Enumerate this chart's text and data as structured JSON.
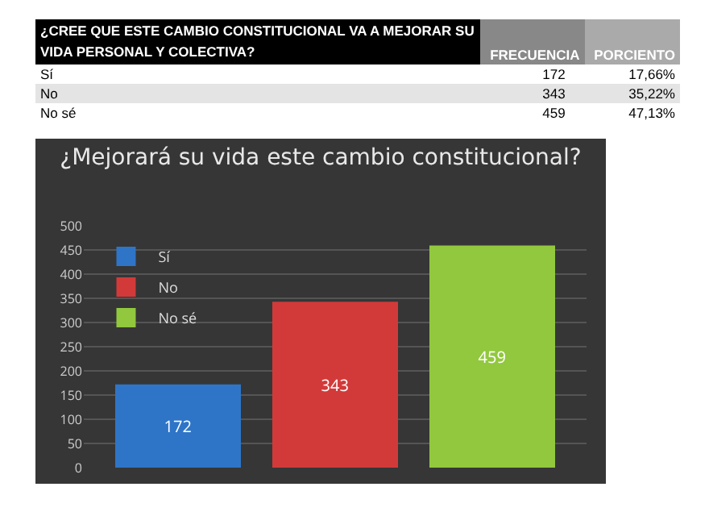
{
  "chart_data": {
    "type": "bar",
    "title": "¿Mejorará su vida este cambio constitucional?",
    "categories": [
      null,
      null,
      null
    ],
    "series": [
      {
        "name": "Sí",
        "color": "#2e75c8",
        "values": [
          172,
          null,
          null
        ]
      },
      {
        "name": "No",
        "color": "#d23a3a",
        "values": [
          null,
          343,
          null
        ]
      },
      {
        "name": "No sé",
        "color": "#92c83e",
        "values": [
          null,
          null,
          459
        ]
      }
    ],
    "ylim": [
      0,
      500
    ],
    "yticks": [
      0,
      50,
      100,
      150,
      200,
      250,
      300,
      350,
      400,
      450,
      500
    ],
    "grid": "y",
    "legend": "top left",
    "data_labels": true,
    "annotations": [
      "¿CREE  QUE ESTE CAMBIO CONSTITUCIONAL VA A MEJORAR SU VIDA PERSONAL Y COLECTIVA?",
      "FRECUENCIA",
      "PORCIENTO",
      "172",
      "17,66%",
      "343",
      "35,22%",
      "459",
      "47,13%"
    ]
  }
}
